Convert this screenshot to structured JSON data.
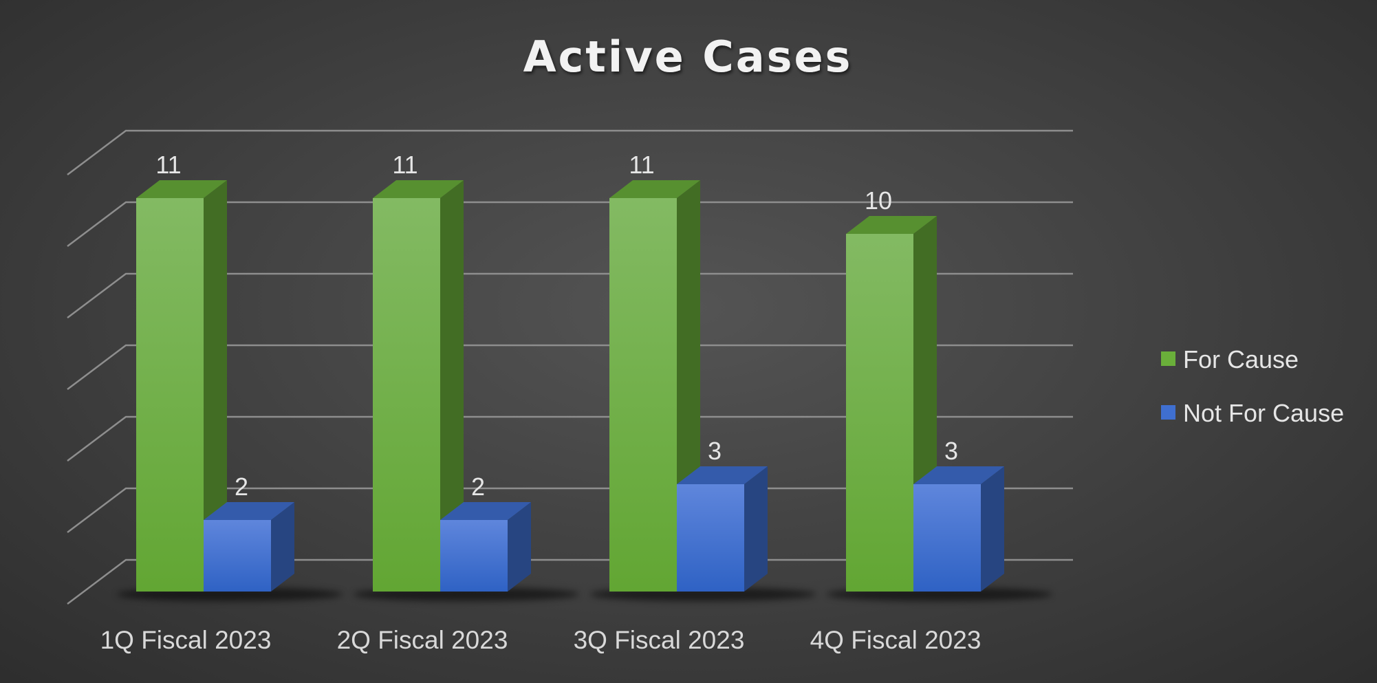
{
  "chart_data": {
    "type": "bar",
    "title": "Active Cases",
    "categories": [
      "1Q Fiscal 2023",
      "2Q Fiscal 2023",
      "3Q Fiscal 2023",
      "4Q Fiscal 2023"
    ],
    "series": [
      {
        "name": "For Cause",
        "values": [
          11,
          11,
          11,
          10
        ],
        "color": "#6aaf3a"
      },
      {
        "name": "Not For Cause",
        "values": [
          2,
          2,
          3,
          3
        ],
        "color": "#3f6fd0"
      }
    ],
    "ylim": [
      0,
      12
    ],
    "grid": true,
    "data_labels": true,
    "legend_position": "right",
    "style": "3d-clustered-column"
  }
}
